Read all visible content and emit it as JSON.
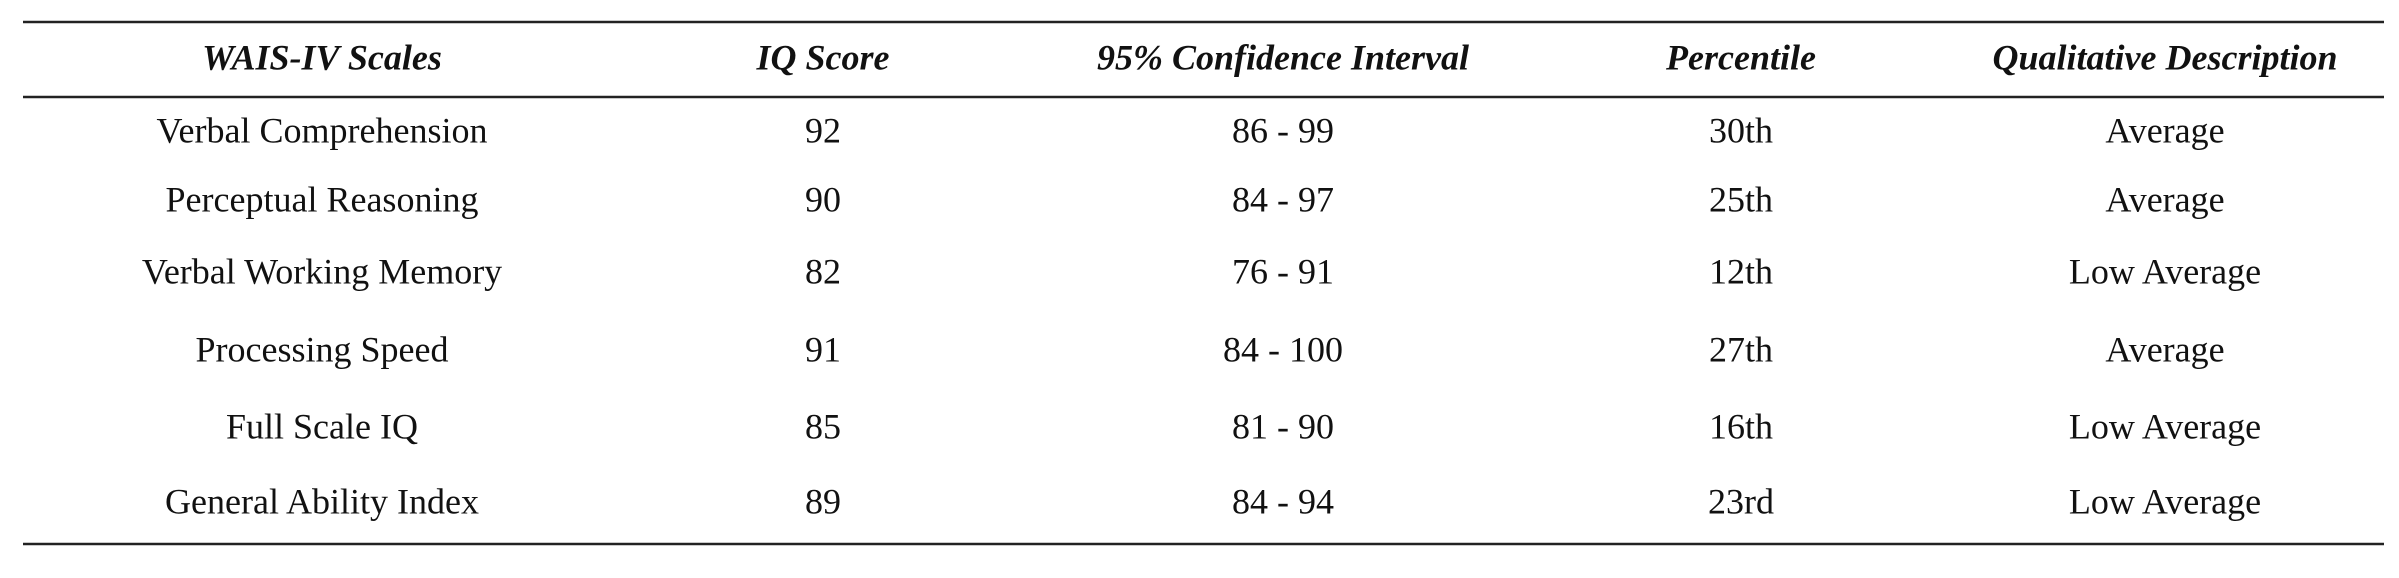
{
  "table": {
    "columns": [
      "WAIS-IV Scales",
      "IQ Score",
      "95% Confidence Interval",
      "Percentile",
      "Qualitative Description"
    ],
    "rows": [
      [
        "Verbal Comprehension",
        92,
        "86 - 99",
        "30th",
        "Average"
      ],
      [
        "Perceptual Reasoning",
        90,
        "84 - 97",
        "25th",
        "Average"
      ],
      [
        "Verbal Working Memory",
        82,
        "76 - 91",
        "12th",
        "Low Average"
      ],
      [
        "Processing Speed",
        91,
        "84 - 100",
        "27th",
        "Average"
      ],
      [
        "Full Scale IQ",
        85,
        "81 - 90",
        "16th",
        "Low Average"
      ],
      [
        "General Ability Index",
        89,
        "84 - 94",
        "23rd",
        "Low Average"
      ]
    ]
  }
}
